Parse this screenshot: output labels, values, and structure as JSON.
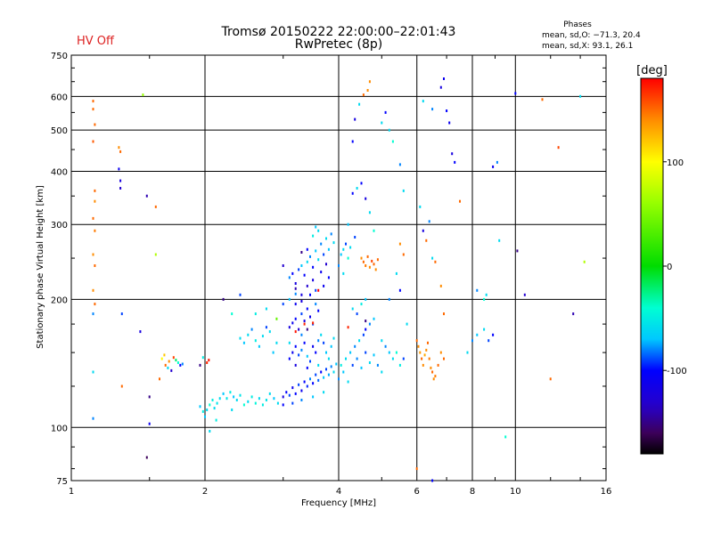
{
  "hv_status": "HV Off",
  "hv_color": "#dd2222",
  "title_line1": "Tromsø 20150222 22:00:00–22:01:43",
  "title_line2": "RwPretec (8p)",
  "stats": {
    "heading": "Phases",
    "line_o": "mean, sd,O: −71.3, 20.4",
    "line_x": "mean, sd,X:  93.1, 26.1"
  },
  "chart_data": {
    "type": "scatter",
    "xlabel": "Frequency [MHz]",
    "ylabel": "Stationary phase Virtual Height [km]",
    "xscale": "log",
    "yscale": "log",
    "xlim": [
      1,
      16
    ],
    "ylim": [
      75,
      750
    ],
    "xticks": [
      1,
      2,
      4,
      6,
      8,
      10,
      16
    ],
    "xtick_labels": [
      "1",
      "2",
      "4",
      "6",
      "8",
      "10",
      "16"
    ],
    "yticks": [
      75,
      100,
      200,
      300,
      400,
      500,
      600,
      750
    ],
    "ytick_labels": [
      "75",
      "100",
      "200",
      "300",
      "400",
      "500",
      "600",
      "750"
    ],
    "x_gridlines": [
      2,
      4,
      6,
      8,
      10
    ],
    "y_gridlines": [
      100,
      200,
      300,
      400,
      500,
      600
    ],
    "grid": true,
    "colorbar": {
      "label": "[deg]",
      "range": [
        -180,
        180
      ],
      "ticks": [
        100,
        0,
        -100
      ],
      "tick_labels": [
        "100",
        "0",
        "-100"
      ]
    },
    "points": [
      [
        1.12,
        585,
        150
      ],
      [
        1.12,
        560,
        150
      ],
      [
        1.13,
        515,
        150
      ],
      [
        1.12,
        470,
        155
      ],
      [
        1.13,
        360,
        150
      ],
      [
        1.13,
        340,
        140
      ],
      [
        1.12,
        310,
        150
      ],
      [
        1.13,
        290,
        145
      ],
      [
        1.12,
        255,
        140
      ],
      [
        1.13,
        240,
        150
      ],
      [
        1.12,
        210,
        140
      ],
      [
        1.13,
        195,
        150
      ],
      [
        1.12,
        185,
        -80
      ],
      [
        1.12,
        135,
        -60
      ],
      [
        1.12,
        105,
        -80
      ],
      [
        1.28,
        455,
        140
      ],
      [
        1.29,
        445,
        150
      ],
      [
        1.28,
        405,
        -110
      ],
      [
        1.29,
        380,
        -120
      ],
      [
        1.29,
        365,
        -130
      ],
      [
        1.3,
        185,
        -90
      ],
      [
        1.3,
        125,
        150
      ],
      [
        1.45,
        605,
        60
      ],
      [
        1.48,
        350,
        -140
      ],
      [
        1.55,
        330,
        150
      ],
      [
        1.55,
        255,
        70
      ],
      [
        1.43,
        168,
        -120
      ],
      [
        1.5,
        118,
        -150
      ],
      [
        1.5,
        102,
        -110
      ],
      [
        1.48,
        85,
        -160
      ],
      [
        1.6,
        145,
        100
      ],
      [
        1.62,
        148,
        120
      ],
      [
        1.63,
        140,
        150
      ],
      [
        1.66,
        143,
        140
      ],
      [
        1.7,
        146,
        160
      ],
      [
        1.72,
        144,
        -20
      ],
      [
        1.74,
        142,
        -40
      ],
      [
        1.76,
        140,
        -100
      ],
      [
        1.78,
        141,
        -80
      ],
      [
        1.65,
        138,
        -60
      ],
      [
        1.68,
        136,
        -130
      ],
      [
        1.58,
        130,
        150
      ],
      [
        1.95,
        140,
        -150
      ],
      [
        1.98,
        146,
        -50
      ],
      [
        2.02,
        142,
        170
      ],
      [
        2.04,
        144,
        175
      ],
      [
        1.95,
        112,
        -70
      ],
      [
        1.98,
        109,
        -50
      ],
      [
        2.0,
        106,
        -70
      ],
      [
        2.02,
        110,
        -60
      ],
      [
        2.05,
        113,
        -40
      ],
      [
        2.08,
        116,
        -50
      ],
      [
        2.1,
        111,
        -60
      ],
      [
        2.13,
        114,
        -55
      ],
      [
        2.16,
        117,
        -60
      ],
      [
        2.2,
        120,
        -70
      ],
      [
        2.24,
        117,
        -55
      ],
      [
        2.28,
        121,
        -50
      ],
      [
        2.32,
        118,
        -70
      ],
      [
        2.36,
        116,
        -60
      ],
      [
        2.4,
        119,
        -55
      ],
      [
        2.45,
        113,
        -40
      ],
      [
        2.5,
        115,
        -60
      ],
      [
        2.55,
        118,
        -50
      ],
      [
        2.6,
        114,
        -45
      ],
      [
        2.65,
        117,
        -60
      ],
      [
        2.7,
        113,
        -50
      ],
      [
        2.75,
        116,
        -55
      ],
      [
        2.8,
        120,
        -60
      ],
      [
        2.86,
        117,
        -70
      ],
      [
        2.92,
        114,
        -60
      ],
      [
        2.05,
        98,
        -60
      ],
      [
        2.12,
        104,
        -50
      ],
      [
        2.3,
        110,
        -60
      ],
      [
        2.4,
        162,
        -60
      ],
      [
        2.45,
        158,
        -70
      ],
      [
        2.5,
        165,
        -60
      ],
      [
        2.55,
        170,
        -80
      ],
      [
        2.6,
        160,
        -50
      ],
      [
        2.65,
        155,
        -70
      ],
      [
        2.7,
        164,
        -60
      ],
      [
        2.75,
        172,
        -90
      ],
      [
        2.8,
        168,
        -60
      ],
      [
        2.85,
        150,
        -70
      ],
      [
        2.9,
        158,
        -60
      ],
      [
        2.3,
        185,
        -40
      ],
      [
        2.6,
        185,
        -50
      ],
      [
        2.75,
        190,
        -60
      ],
      [
        2.9,
        180,
        40
      ],
      [
        2.2,
        200,
        -150
      ],
      [
        2.4,
        205,
        -90
      ],
      [
        3.0,
        118,
        -120
      ],
      [
        3.05,
        121,
        -100
      ],
      [
        3.1,
        119,
        -90
      ],
      [
        3.15,
        124,
        -110
      ],
      [
        3.2,
        120,
        -100
      ],
      [
        3.25,
        126,
        -90
      ],
      [
        3.3,
        122,
        -110
      ],
      [
        3.35,
        128,
        -100
      ],
      [
        3.4,
        125,
        -95
      ],
      [
        3.45,
        130,
        -80
      ],
      [
        3.5,
        127,
        -100
      ],
      [
        3.55,
        133,
        -90
      ],
      [
        3.6,
        129,
        -85
      ],
      [
        3.65,
        135,
        -100
      ],
      [
        3.7,
        131,
        -70
      ],
      [
        3.75,
        137,
        -90
      ],
      [
        3.8,
        133,
        -75
      ],
      [
        3.85,
        139,
        -80
      ],
      [
        3.9,
        135,
        -60
      ],
      [
        3.95,
        141,
        -70
      ],
      [
        3.0,
        113,
        -100
      ],
      [
        3.15,
        114,
        -90
      ],
      [
        3.3,
        116,
        -80
      ],
      [
        3.5,
        118,
        -70
      ],
      [
        3.7,
        121,
        -60
      ],
      [
        3.1,
        145,
        -100
      ],
      [
        3.15,
        150,
        -110
      ],
      [
        3.2,
        155,
        -100
      ],
      [
        3.25,
        148,
        -90
      ],
      [
        3.3,
        152,
        -80
      ],
      [
        3.35,
        158,
        -100
      ],
      [
        3.4,
        147,
        -70
      ],
      [
        3.45,
        143,
        -90
      ],
      [
        3.5,
        155,
        -110
      ],
      [
        3.55,
        150,
        -100
      ],
      [
        3.6,
        160,
        -80
      ],
      [
        3.65,
        165,
        -60
      ],
      [
        3.7,
        158,
        -90
      ],
      [
        3.75,
        150,
        -70
      ],
      [
        3.8,
        145,
        -60
      ],
      [
        3.85,
        155,
        -70
      ],
      [
        3.9,
        162,
        -60
      ],
      [
        3.2,
        140,
        -120
      ],
      [
        3.4,
        138,
        -100
      ],
      [
        3.6,
        140,
        -60
      ],
      [
        3.1,
        158,
        -60
      ],
      [
        3.3,
        165,
        -80
      ],
      [
        3.1,
        172,
        -120
      ],
      [
        3.15,
        176,
        -110
      ],
      [
        3.2,
        180,
        -100
      ],
      [
        3.25,
        170,
        -130
      ],
      [
        3.3,
        185,
        -90
      ],
      [
        3.35,
        178,
        -120
      ],
      [
        3.4,
        190,
        -100
      ],
      [
        3.45,
        182,
        -110
      ],
      [
        3.5,
        175,
        -90
      ],
      [
        3.55,
        195,
        -80
      ],
      [
        3.6,
        188,
        -100
      ],
      [
        3.2,
        195,
        -110
      ],
      [
        3.3,
        198,
        -120
      ],
      [
        3.45,
        205,
        -100
      ],
      [
        3.55,
        210,
        -90
      ],
      [
        3.2,
        168,
        175
      ],
      [
        3.5,
        176,
        170
      ],
      [
        3.4,
        170,
        -150
      ],
      [
        3.1,
        225,
        -80
      ],
      [
        3.15,
        230,
        -100
      ],
      [
        3.2,
        218,
        -120
      ],
      [
        3.25,
        235,
        -90
      ],
      [
        3.3,
        240,
        -70
      ],
      [
        3.35,
        228,
        -100
      ],
      [
        3.4,
        245,
        -60
      ],
      [
        3.45,
        252,
        -80
      ],
      [
        3.5,
        238,
        -100
      ],
      [
        3.55,
        260,
        -70
      ],
      [
        3.6,
        248,
        -60
      ],
      [
        3.65,
        270,
        -80
      ],
      [
        3.7,
        255,
        -90
      ],
      [
        3.75,
        278,
        -60
      ],
      [
        3.8,
        262,
        -70
      ],
      [
        3.85,
        285,
        -80
      ],
      [
        3.9,
        272,
        -60
      ],
      [
        3.5,
        282,
        -50
      ],
      [
        3.6,
        290,
        -60
      ],
      [
        3.55,
        296,
        -70
      ],
      [
        3.2,
        212,
        -140
      ],
      [
        3.3,
        205,
        -120
      ],
      [
        3.7,
        215,
        -110
      ],
      [
        3.8,
        225,
        -100
      ],
      [
        3.4,
        262,
        -100
      ],
      [
        3.0,
        240,
        -130
      ],
      [
        3.1,
        200,
        -70
      ],
      [
        3.2,
        206,
        -80
      ],
      [
        3.0,
        195,
        -90
      ],
      [
        3.4,
        215,
        -130
      ],
      [
        3.5,
        222,
        -120
      ],
      [
        3.65,
        232,
        -110
      ],
      [
        3.75,
        242,
        -130
      ],
      [
        3.3,
        258,
        -150
      ],
      [
        3.6,
        210,
        180
      ],
      [
        3.35,
        175,
        170
      ],
      [
        4.0,
        130,
        -80
      ],
      [
        4.1,
        135,
        -70
      ],
      [
        4.2,
        128,
        -60
      ],
      [
        4.3,
        140,
        -90
      ],
      [
        4.4,
        145,
        -80
      ],
      [
        4.5,
        138,
        -70
      ],
      [
        4.6,
        150,
        -90
      ],
      [
        4.7,
        142,
        -60
      ],
      [
        4.8,
        148,
        -70
      ],
      [
        4.9,
        140,
        -80
      ],
      [
        5.0,
        135,
        -60
      ],
      [
        4.05,
        140,
        -50
      ],
      [
        4.15,
        145,
        -60
      ],
      [
        4.25,
        150,
        -70
      ],
      [
        4.35,
        155,
        -80
      ],
      [
        4.45,
        160,
        -60
      ],
      [
        4.55,
        165,
        -90
      ],
      [
        4.6,
        170,
        -100
      ],
      [
        4.7,
        175,
        -80
      ],
      [
        4.8,
        180,
        -70
      ],
      [
        4.4,
        185,
        -90
      ],
      [
        4.3,
        190,
        -60
      ],
      [
        4.5,
        195,
        -50
      ],
      [
        4.6,
        200,
        -70
      ],
      [
        4.2,
        172,
        170
      ],
      [
        4.6,
        178,
        -150
      ],
      [
        4.0,
        240,
        -80
      ],
      [
        4.05,
        255,
        -70
      ],
      [
        4.1,
        262,
        -60
      ],
      [
        4.15,
        270,
        -90
      ],
      [
        4.2,
        250,
        -40
      ],
      [
        4.25,
        265,
        -60
      ],
      [
        4.35,
        280,
        -90
      ],
      [
        4.1,
        230,
        -60
      ],
      [
        4.2,
        300,
        -70
      ],
      [
        4.3,
        355,
        -100
      ],
      [
        4.4,
        365,
        -60
      ],
      [
        4.5,
        375,
        -100
      ],
      [
        4.6,
        345,
        -120
      ],
      [
        4.7,
        320,
        -60
      ],
      [
        4.8,
        290,
        -40
      ],
      [
        4.3,
        470,
        -100
      ],
      [
        4.35,
        530,
        -120
      ],
      [
        4.45,
        575,
        -60
      ],
      [
        4.55,
        605,
        150
      ],
      [
        4.65,
        620,
        140
      ],
      [
        4.7,
        650,
        140
      ],
      [
        4.5,
        250,
        140
      ],
      [
        4.55,
        245,
        150
      ],
      [
        4.6,
        240,
        145
      ],
      [
        4.65,
        252,
        150
      ],
      [
        4.7,
        238,
        140
      ],
      [
        4.75,
        246,
        160
      ],
      [
        4.8,
        242,
        150
      ],
      [
        4.85,
        235,
        140
      ],
      [
        4.9,
        248,
        150
      ],
      [
        5.0,
        160,
        -60
      ],
      [
        5.1,
        155,
        -80
      ],
      [
        5.2,
        150,
        -70
      ],
      [
        5.3,
        145,
        -60
      ],
      [
        5.4,
        150,
        -40
      ],
      [
        5.5,
        140,
        -50
      ],
      [
        5.6,
        145,
        -90
      ],
      [
        5.0,
        520,
        -60
      ],
      [
        5.1,
        550,
        -100
      ],
      [
        5.2,
        500,
        -60
      ],
      [
        5.3,
        470,
        -40
      ],
      [
        5.5,
        415,
        -80
      ],
      [
        5.6,
        360,
        -60
      ],
      [
        5.5,
        270,
        140
      ],
      [
        5.6,
        255,
        150
      ],
      [
        5.4,
        230,
        -60
      ],
      [
        5.5,
        210,
        -100
      ],
      [
        5.2,
        200,
        -80
      ],
      [
        5.7,
        175,
        -60
      ],
      [
        6.0,
        160,
        150
      ],
      [
        6.05,
        155,
        140
      ],
      [
        6.1,
        150,
        135
      ],
      [
        6.15,
        145,
        150
      ],
      [
        6.2,
        140,
        140
      ],
      [
        6.25,
        148,
        130
      ],
      [
        6.3,
        152,
        140
      ],
      [
        6.35,
        158,
        150
      ],
      [
        6.4,
        145,
        145
      ],
      [
        6.45,
        138,
        140
      ],
      [
        6.5,
        135,
        150
      ],
      [
        6.55,
        130,
        140
      ],
      [
        6.6,
        132,
        145
      ],
      [
        6.7,
        140,
        150
      ],
      [
        6.8,
        150,
        140
      ],
      [
        6.9,
        145,
        150
      ],
      [
        6.2,
        585,
        -60
      ],
      [
        6.5,
        560,
        -80
      ],
      [
        6.8,
        630,
        -120
      ],
      [
        6.9,
        660,
        -110
      ],
      [
        7.0,
        555,
        -100
      ],
      [
        7.1,
        520,
        -110
      ],
      [
        7.2,
        440,
        -120
      ],
      [
        7.3,
        420,
        -100
      ],
      [
        6.3,
        275,
        150
      ],
      [
        6.5,
        250,
        -60
      ],
      [
        6.6,
        245,
        150
      ],
      [
        6.8,
        215,
        140
      ],
      [
        6.9,
        185,
        150
      ],
      [
        6.2,
        290,
        -120
      ],
      [
        6.0,
        80,
        150
      ],
      [
        6.5,
        75,
        -100
      ],
      [
        6.1,
        330,
        -60
      ],
      [
        6.4,
        305,
        -80
      ],
      [
        7.5,
        340,
        150
      ],
      [
        7.8,
        150,
        -60
      ],
      [
        8.0,
        160,
        -80
      ],
      [
        8.2,
        165,
        -70
      ],
      [
        8.5,
        170,
        -60
      ],
      [
        8.7,
        160,
        -90
      ],
      [
        8.9,
        165,
        -100
      ],
      [
        8.2,
        210,
        -80
      ],
      [
        8.6,
        205,
        -60
      ],
      [
        8.9,
        410,
        -110
      ],
      [
        9.1,
        420,
        -80
      ],
      [
        9.2,
        275,
        -60
      ],
      [
        9.5,
        95,
        -40
      ],
      [
        8.5,
        200,
        -40
      ],
      [
        10.0,
        610,
        -100
      ],
      [
        10.1,
        260,
        -150
      ],
      [
        10.5,
        205,
        -130
      ],
      [
        11.5,
        590,
        150
      ],
      [
        12.0,
        130,
        150
      ],
      [
        12.5,
        455,
        160
      ],
      [
        13.5,
        185,
        -140
      ],
      [
        14.0,
        600,
        -60
      ],
      [
        14.3,
        245,
        70
      ]
    ]
  }
}
